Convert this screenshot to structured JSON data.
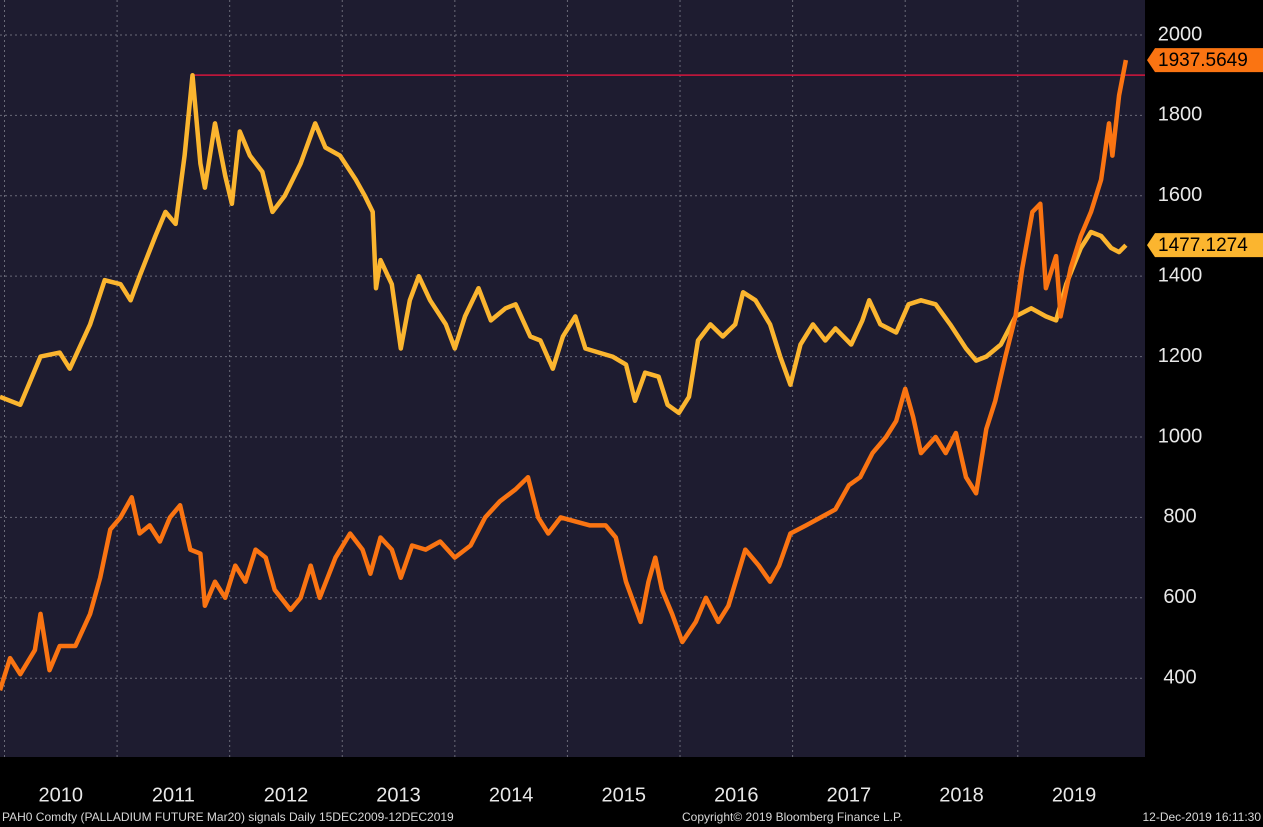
{
  "chart_data": {
    "type": "line",
    "xlim": [
      2009.96,
      2020.13
    ],
    "ylim": [
      204,
      2087
    ],
    "yticks": [
      400,
      600,
      800,
      1000,
      1200,
      1400,
      1600,
      1800,
      2000
    ],
    "xticks": [
      {
        "value": 2010.5,
        "label": "2010"
      },
      {
        "value": 2011.5,
        "label": "2011"
      },
      {
        "value": 2012.5,
        "label": "2012"
      },
      {
        "value": 2013.5,
        "label": "2013"
      },
      {
        "value": 2014.5,
        "label": "2014"
      },
      {
        "value": 2015.5,
        "label": "2015"
      },
      {
        "value": 2016.5,
        "label": "2016"
      },
      {
        "value": 2017.5,
        "label": "2017"
      },
      {
        "value": 2018.5,
        "label": "2018"
      },
      {
        "value": 2019.5,
        "label": "2019"
      }
    ],
    "grid": true,
    "reference_line": {
      "value": 1900,
      "x": 2011.66,
      "color": "#d4163c"
    },
    "series": [
      {
        "color": "#fa7412",
        "x": [
          2009.96,
          2010.05,
          2010.14,
          2010.27,
          2010.32,
          2010.4,
          2010.49,
          2010.63,
          2010.76,
          2010.85,
          2010.94,
          2011.03,
          2011.13,
          2011.2,
          2011.29,
          2011.38,
          2011.47,
          2011.56,
          2011.65,
          2011.74,
          2011.78,
          2011.87,
          2011.96,
          2012.05,
          2012.14,
          2012.23,
          2012.32,
          2012.4,
          2012.54,
          2012.63,
          2012.72,
          2012.8,
          2012.94,
          2013.07,
          2013.18,
          2013.25,
          2013.34,
          2013.44,
          2013.52,
          2013.62,
          2013.74,
          2013.87,
          2014.0,
          2014.14,
          2014.27,
          2014.4,
          2014.54,
          2014.65,
          2014.74,
          2014.83,
          2014.94,
          2015.07,
          2015.2,
          2015.34,
          2015.43,
          2015.52,
          2015.65,
          2015.72,
          2015.78,
          2015.84,
          2015.93,
          2016.02,
          2016.14,
          2016.23,
          2016.34,
          2016.43,
          2016.58,
          2016.7,
          2016.8,
          2016.88,
          2016.98,
          2017.12,
          2017.25,
          2017.38,
          2017.5,
          2017.6,
          2017.71,
          2017.83,
          2017.92,
          2018.0,
          2018.07,
          2018.14,
          2018.27,
          2018.36,
          2018.45,
          2018.54,
          2018.63,
          2018.72,
          2018.8,
          2018.89,
          2018.98,
          2019.04,
          2019.13,
          2019.2,
          2019.25,
          2019.34,
          2019.38,
          2019.47,
          2019.56,
          2019.65,
          2019.74,
          2019.81,
          2019.84,
          2019.9,
          2019.96
        ],
        "values": [
          370,
          450,
          410,
          470,
          560,
          420,
          480,
          480,
          560,
          650,
          770,
          800,
          850,
          760,
          780,
          740,
          800,
          830,
          720,
          710,
          580,
          640,
          600,
          680,
          640,
          720,
          700,
          620,
          570,
          600,
          680,
          600,
          700,
          760,
          720,
          660,
          750,
          720,
          650,
          730,
          720,
          740,
          700,
          730,
          800,
          840,
          870,
          900,
          800,
          760,
          800,
          790,
          780,
          780,
          750,
          640,
          540,
          640,
          700,
          620,
          560,
          490,
          540,
          600,
          540,
          580,
          720,
          680,
          640,
          680,
          760,
          780,
          800,
          820,
          880,
          900,
          960,
          1000,
          1040,
          1120,
          1050,
          960,
          1000,
          960,
          1010,
          900,
          860,
          1020,
          1090,
          1200,
          1300,
          1420,
          1560,
          1580,
          1370,
          1450,
          1300,
          1420,
          1500,
          1560,
          1640,
          1780,
          1700,
          1850,
          1937.5649
        ]
      },
      {
        "color": "#fbb52f",
        "x": [
          2009.96,
          2010.14,
          2010.32,
          2010.49,
          2010.58,
          2010.76,
          2010.89,
          2011.03,
          2011.12,
          2011.2,
          2011.34,
          2011.43,
          2011.52,
          2011.6,
          2011.67,
          2011.74,
          2011.78,
          2011.87,
          2011.96,
          2012.02,
          2012.09,
          2012.18,
          2012.29,
          2012.38,
          2012.49,
          2012.63,
          2012.76,
          2012.85,
          2012.98,
          2013.12,
          2013.2,
          2013.27,
          2013.3,
          2013.34,
          2013.44,
          2013.52,
          2013.6,
          2013.68,
          2013.78,
          2013.92,
          2014.0,
          2014.09,
          2014.21,
          2014.32,
          2014.45,
          2014.54,
          2014.67,
          2014.76,
          2014.87,
          2014.96,
          2015.07,
          2015.16,
          2015.28,
          2015.4,
          2015.52,
          2015.6,
          2015.69,
          2015.81,
          2015.89,
          2015.99,
          2016.08,
          2016.16,
          2016.27,
          2016.38,
          2016.49,
          2016.56,
          2016.67,
          2016.8,
          2016.89,
          2016.98,
          2017.07,
          2017.18,
          2017.29,
          2017.38,
          2017.52,
          2017.62,
          2017.68,
          2017.78,
          2017.92,
          2018.03,
          2018.14,
          2018.27,
          2018.4,
          2018.54,
          2018.63,
          2018.72,
          2018.85,
          2018.98,
          2019.12,
          2019.25,
          2019.34,
          2019.43,
          2019.56,
          2019.65,
          2019.74,
          2019.83,
          2019.9,
          2019.96
        ],
        "values": [
          1100,
          1080,
          1200,
          1210,
          1170,
          1280,
          1390,
          1380,
          1340,
          1400,
          1500,
          1560,
          1530,
          1700,
          1900,
          1680,
          1620,
          1780,
          1650,
          1580,
          1760,
          1700,
          1660,
          1560,
          1600,
          1680,
          1780,
          1720,
          1700,
          1640,
          1600,
          1560,
          1370,
          1440,
          1380,
          1220,
          1340,
          1400,
          1340,
          1280,
          1220,
          1300,
          1370,
          1290,
          1320,
          1330,
          1250,
          1240,
          1170,
          1250,
          1300,
          1220,
          1210,
          1200,
          1180,
          1090,
          1160,
          1150,
          1080,
          1060,
          1100,
          1240,
          1280,
          1250,
          1280,
          1360,
          1340,
          1280,
          1200,
          1130,
          1230,
          1280,
          1240,
          1270,
          1230,
          1290,
          1340,
          1280,
          1260,
          1330,
          1340,
          1330,
          1280,
          1220,
          1190,
          1200,
          1230,
          1300,
          1320,
          1300,
          1290,
          1380,
          1470,
          1510,
          1500,
          1470,
          1460,
          1477.1274
        ]
      }
    ],
    "footer": {
      "left": "PAH0 Comdty (PALLADIUM FUTURE  Mar20) signals  Daily 15DEC2009-12DEC2019",
      "center": "Copyright© 2019 Bloomberg Finance L.P.",
      "right": "12-Dec-2019 16:11:30"
    }
  }
}
